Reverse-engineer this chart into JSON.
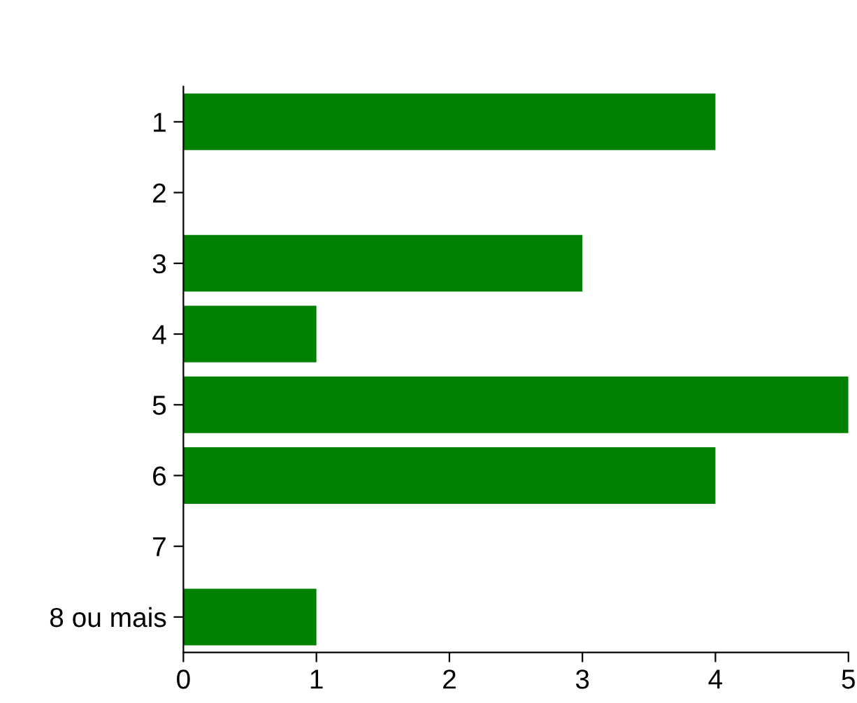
{
  "chart_data": {
    "type": "bar",
    "orientation": "horizontal",
    "categories": [
      "1",
      "2",
      "3",
      "4",
      "5",
      "6",
      "7",
      "8 ou mais"
    ],
    "values": [
      4,
      0,
      3,
      1,
      5,
      4,
      0,
      1
    ],
    "color": "#008000",
    "xlim": [
      0,
      5
    ],
    "xticks": [
      0,
      1,
      2,
      3,
      4,
      5
    ],
    "grid": false,
    "legend": false
  }
}
